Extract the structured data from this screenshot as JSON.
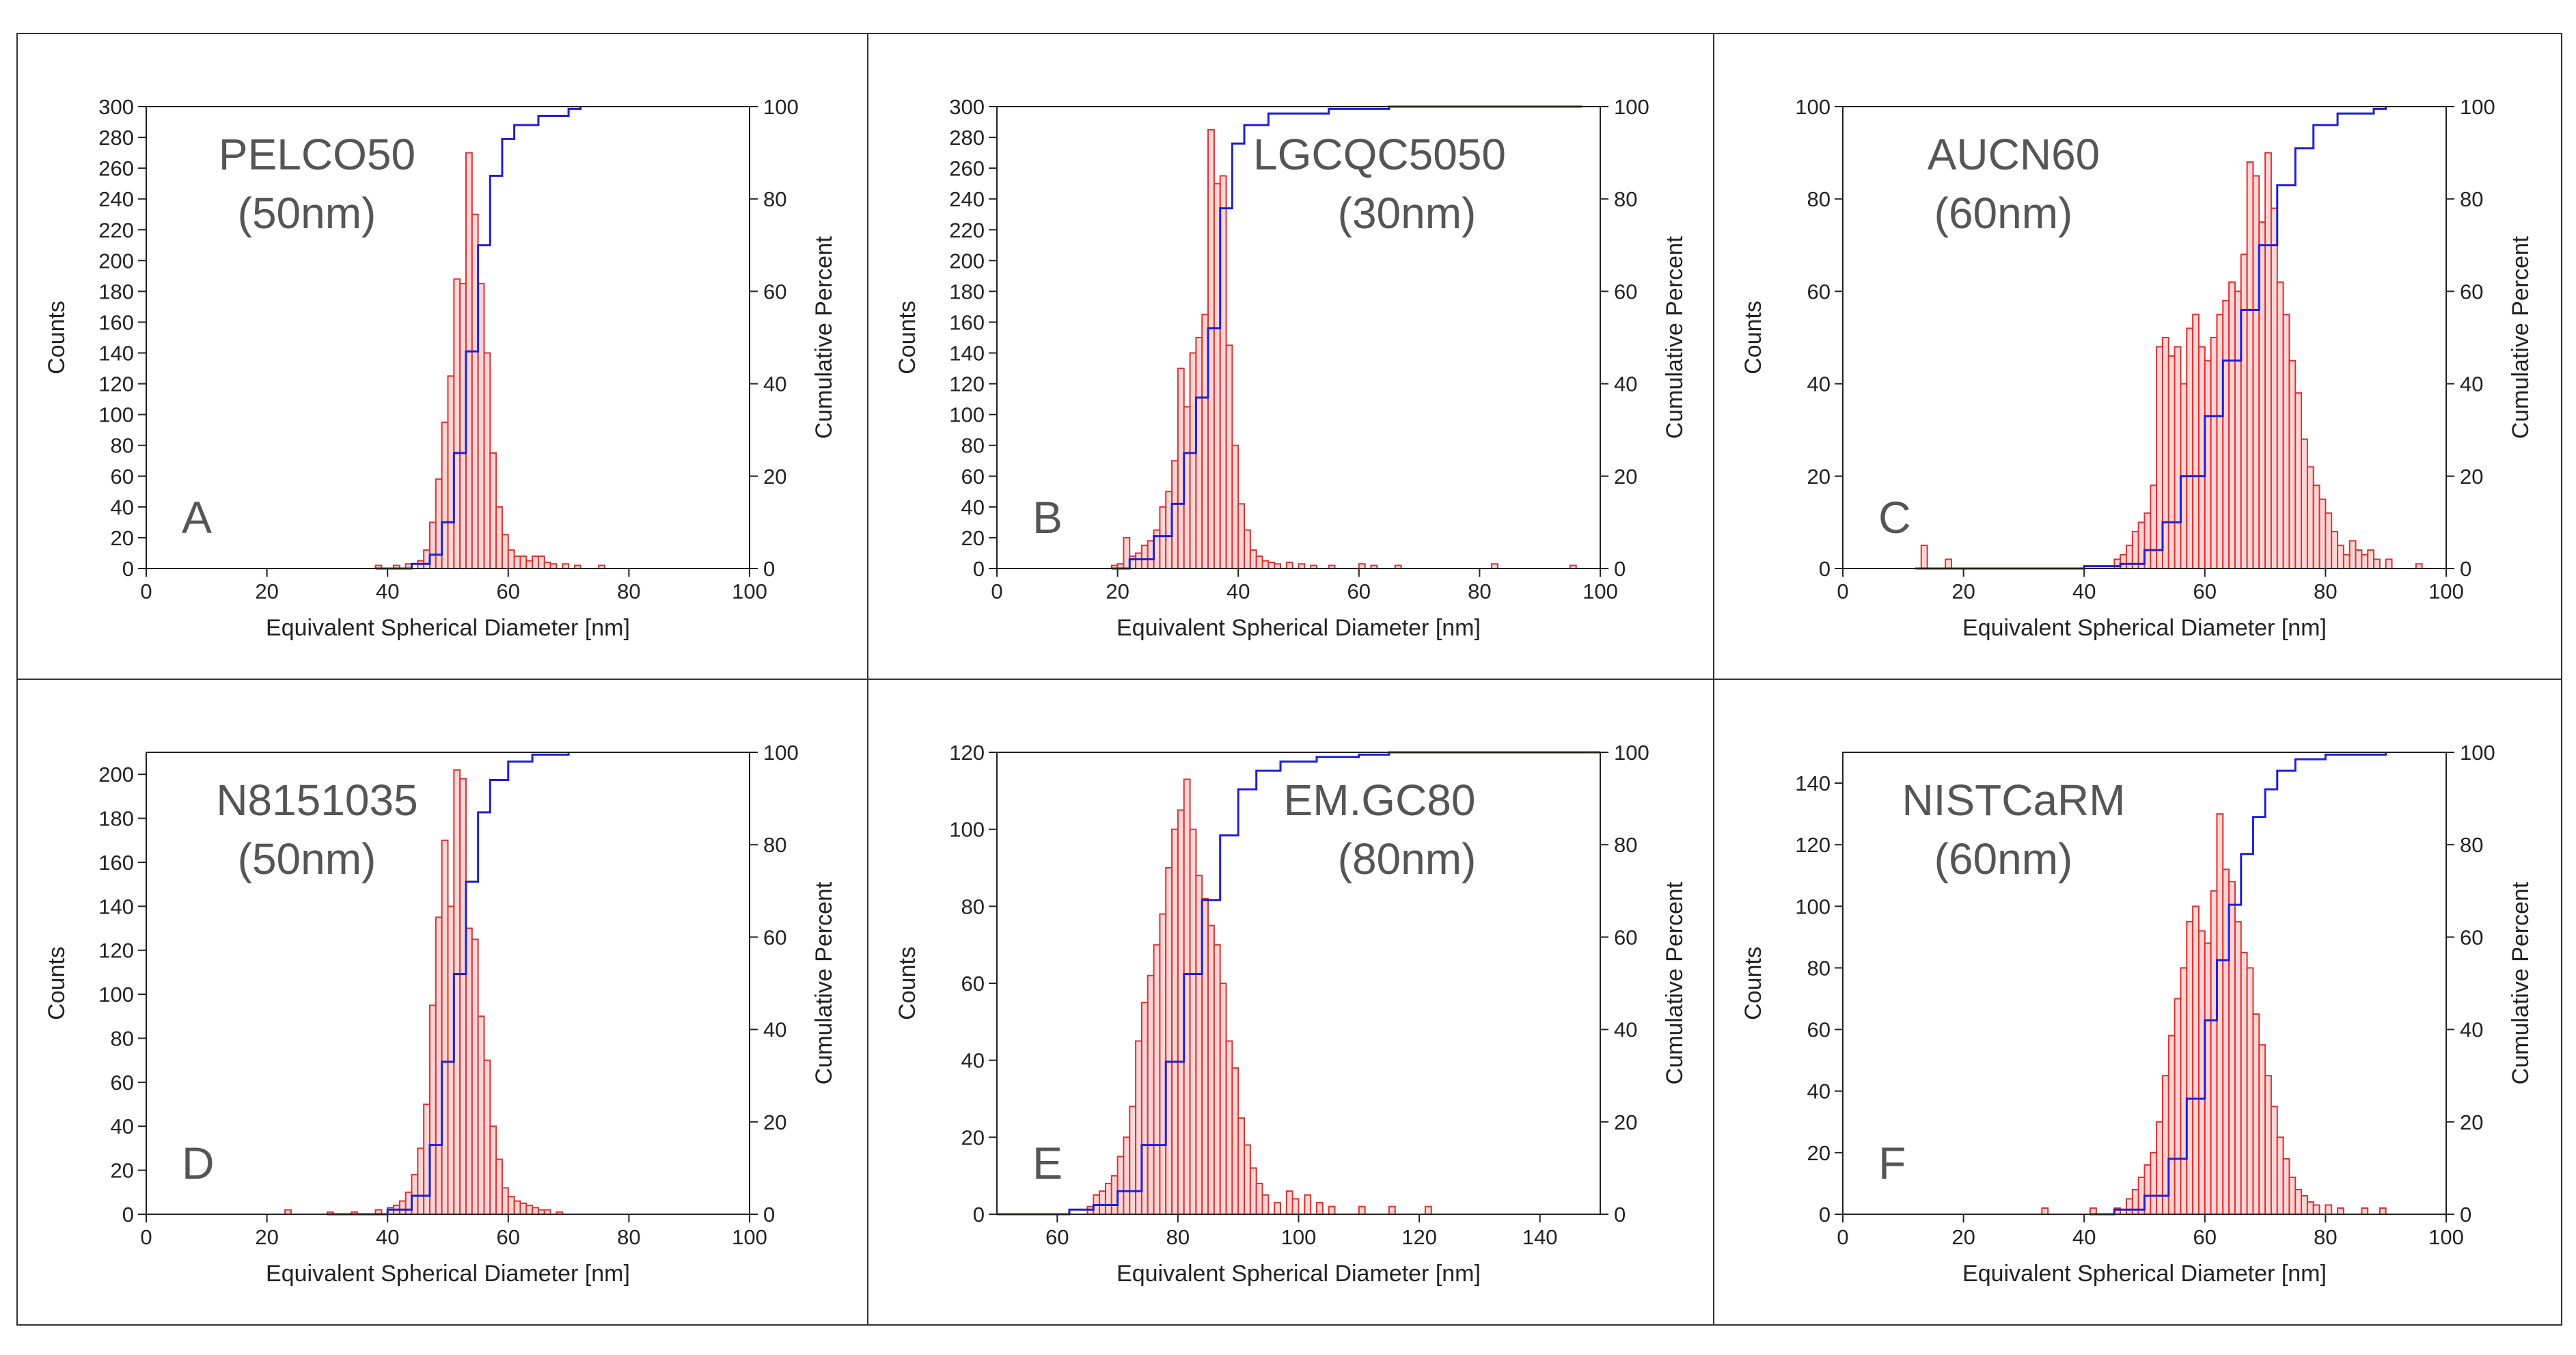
{
  "colors": {
    "bar_edge": "#e03030",
    "bar_fill": "#fbd6d6",
    "cumulative_line": "#1f1fd6",
    "axis": "#222222",
    "label_text": "#555555"
  },
  "chart_data": [
    {
      "type": "bar",
      "panel_letter": "A",
      "sample_name": "PELCO50",
      "sample_size": "(50nm)",
      "xlabel": "Equivalent Spherical Diameter [nm]",
      "ylabel": "Counts",
      "y2label": "Cumulative Percent",
      "xlim": [
        0,
        100
      ],
      "ylim": [
        0,
        300
      ],
      "y2lim": [
        0,
        100
      ],
      "x_ticks": [
        0,
        20,
        40,
        60,
        80,
        100
      ],
      "y_ticks": [
        0,
        20,
        40,
        60,
        80,
        100,
        120,
        140,
        160,
        180,
        200,
        220,
        240,
        260,
        280,
        300
      ],
      "y2_ticks": [
        0,
        20,
        40,
        60,
        80,
        100
      ],
      "bin_width": 1,
      "bins": [
        [
          38,
          2
        ],
        [
          41,
          2
        ],
        [
          43,
          3
        ],
        [
          45,
          5
        ],
        [
          46,
          12
        ],
        [
          47,
          30
        ],
        [
          48,
          58
        ],
        [
          49,
          95
        ],
        [
          50,
          125
        ],
        [
          51,
          188
        ],
        [
          52,
          185
        ],
        [
          53,
          270
        ],
        [
          54,
          230
        ],
        [
          55,
          185
        ],
        [
          56,
          140
        ],
        [
          57,
          75
        ],
        [
          58,
          40
        ],
        [
          59,
          22
        ],
        [
          60,
          12
        ],
        [
          61,
          8
        ],
        [
          62,
          8
        ],
        [
          63,
          5
        ],
        [
          64,
          8
        ],
        [
          65,
          8
        ],
        [
          66,
          4
        ],
        [
          67,
          3
        ],
        [
          69,
          3
        ],
        [
          71,
          2
        ],
        [
          75,
          2
        ]
      ],
      "cumulative": [
        [
          38,
          0
        ],
        [
          44,
          1
        ],
        [
          47,
          3
        ],
        [
          49,
          10
        ],
        [
          51,
          25
        ],
        [
          53,
          47
        ],
        [
          55,
          70
        ],
        [
          57,
          85
        ],
        [
          59,
          93
        ],
        [
          61,
          96
        ],
        [
          65,
          98
        ],
        [
          70,
          99.5
        ],
        [
          72,
          100
        ]
      ]
    },
    {
      "type": "bar",
      "panel_letter": "B",
      "sample_name": "LGCQC5050",
      "sample_size": "(30nm)",
      "xlabel": "Equivalent Spherical Diameter [nm]",
      "ylabel": "Counts",
      "y2label": "Cumulative Percent",
      "xlim": [
        0,
        100
      ],
      "ylim": [
        0,
        300
      ],
      "y2lim": [
        0,
        100
      ],
      "x_ticks": [
        0,
        20,
        40,
        60,
        80,
        100
      ],
      "y_ticks": [
        0,
        20,
        40,
        60,
        80,
        100,
        120,
        140,
        160,
        180,
        200,
        220,
        240,
        260,
        280,
        300
      ],
      "y2_ticks": [
        0,
        20,
        40,
        60,
        80,
        100
      ],
      "bin_width": 1,
      "bins": [
        [
          19,
          2
        ],
        [
          20,
          3
        ],
        [
          21,
          20
        ],
        [
          22,
          8
        ],
        [
          23,
          10
        ],
        [
          24,
          15
        ],
        [
          25,
          18
        ],
        [
          26,
          25
        ],
        [
          27,
          40
        ],
        [
          28,
          50
        ],
        [
          29,
          70
        ],
        [
          30,
          130
        ],
        [
          31,
          105
        ],
        [
          32,
          140
        ],
        [
          33,
          150
        ],
        [
          34,
          165
        ],
        [
          35,
          285
        ],
        [
          36,
          250
        ],
        [
          37,
          255
        ],
        [
          38,
          145
        ],
        [
          39,
          80
        ],
        [
          40,
          42
        ],
        [
          41,
          25
        ],
        [
          42,
          12
        ],
        [
          43,
          8
        ],
        [
          44,
          5
        ],
        [
          45,
          4
        ],
        [
          46,
          3
        ],
        [
          48,
          4
        ],
        [
          50,
          3
        ],
        [
          52,
          2
        ],
        [
          55,
          2
        ],
        [
          60,
          3
        ],
        [
          62,
          2
        ],
        [
          66,
          2
        ],
        [
          82,
          3
        ],
        [
          95,
          2
        ]
      ],
      "cumulative": [
        [
          19,
          0
        ],
        [
          22,
          2
        ],
        [
          26,
          7
        ],
        [
          29,
          14
        ],
        [
          31,
          25
        ],
        [
          33,
          37
        ],
        [
          35,
          52
        ],
        [
          37,
          78
        ],
        [
          39,
          92
        ],
        [
          41,
          96
        ],
        [
          45,
          98.5
        ],
        [
          55,
          99.5
        ],
        [
          65,
          100
        ],
        [
          80,
          100
        ],
        [
          97,
          100
        ]
      ]
    },
    {
      "type": "bar",
      "panel_letter": "C",
      "sample_name": "AUCN60",
      "sample_size": "(60nm)",
      "xlabel": "Equivalent Spherical Diameter [nm]",
      "ylabel": "Counts",
      "y2label": "Cumulative Percent",
      "xlim": [
        0,
        100
      ],
      "ylim": [
        0,
        100
      ],
      "y2lim": [
        0,
        100
      ],
      "x_ticks": [
        0,
        20,
        40,
        60,
        80,
        100
      ],
      "y_ticks": [
        0,
        20,
        40,
        60,
        80,
        100
      ],
      "y2_ticks": [
        0,
        20,
        40,
        60,
        80,
        100
      ],
      "bin_width": 1,
      "bins": [
        [
          13,
          5
        ],
        [
          17,
          2
        ],
        [
          45,
          2
        ],
        [
          46,
          3
        ],
        [
          47,
          5
        ],
        [
          48,
          8
        ],
        [
          49,
          10
        ],
        [
          50,
          12
        ],
        [
          51,
          18
        ],
        [
          52,
          48
        ],
        [
          53,
          50
        ],
        [
          54,
          46
        ],
        [
          55,
          48
        ],
        [
          56,
          40
        ],
        [
          57,
          52
        ],
        [
          58,
          55
        ],
        [
          59,
          48
        ],
        [
          60,
          45
        ],
        [
          61,
          50
        ],
        [
          62,
          55
        ],
        [
          63,
          58
        ],
        [
          64,
          62
        ],
        [
          65,
          60
        ],
        [
          66,
          68
        ],
        [
          67,
          88
        ],
        [
          68,
          85
        ],
        [
          69,
          75
        ],
        [
          70,
          90
        ],
        [
          71,
          78
        ],
        [
          72,
          62
        ],
        [
          73,
          55
        ],
        [
          74,
          45
        ],
        [
          75,
          38
        ],
        [
          76,
          28
        ],
        [
          77,
          22
        ],
        [
          78,
          18
        ],
        [
          79,
          15
        ],
        [
          80,
          12
        ],
        [
          81,
          8
        ],
        [
          82,
          5
        ],
        [
          83,
          3
        ],
        [
          84,
          6
        ],
        [
          85,
          4
        ],
        [
          86,
          3
        ],
        [
          87,
          4
        ],
        [
          88,
          2
        ],
        [
          90,
          2
        ],
        [
          95,
          1
        ]
      ],
      "cumulative": [
        [
          12,
          0
        ],
        [
          40,
          0.5
        ],
        [
          46,
          1
        ],
        [
          50,
          4
        ],
        [
          53,
          10
        ],
        [
          56,
          20
        ],
        [
          60,
          33
        ],
        [
          63,
          45
        ],
        [
          66,
          56
        ],
        [
          69,
          70
        ],
        [
          72,
          83
        ],
        [
          75,
          91
        ],
        [
          78,
          96
        ],
        [
          82,
          98.5
        ],
        [
          88,
          99.5
        ],
        [
          90,
          100
        ]
      ]
    },
    {
      "type": "bar",
      "panel_letter": "D",
      "sample_name": "N8151035",
      "sample_size": "(50nm)",
      "xlabel": "Equivalent Spherical Diameter [nm]",
      "ylabel": "Counts",
      "y2label": "Cumulative Percent",
      "xlim": [
        0,
        100
      ],
      "ylim": [
        0,
        210
      ],
      "y2lim": [
        0,
        100
      ],
      "x_ticks": [
        0,
        20,
        40,
        60,
        80,
        100
      ],
      "y_ticks": [
        0,
        20,
        40,
        60,
        80,
        100,
        120,
        140,
        160,
        180,
        200
      ],
      "y2_ticks": [
        0,
        20,
        40,
        60,
        80,
        100
      ],
      "bin_width": 1,
      "bins": [
        [
          23,
          2
        ],
        [
          30,
          1
        ],
        [
          34,
          1
        ],
        [
          38,
          2
        ],
        [
          40,
          3
        ],
        [
          41,
          4
        ],
        [
          42,
          6
        ],
        [
          43,
          10
        ],
        [
          44,
          18
        ],
        [
          45,
          30
        ],
        [
          46,
          50
        ],
        [
          47,
          95
        ],
        [
          48,
          135
        ],
        [
          49,
          170
        ],
        [
          50,
          140
        ],
        [
          51,
          202
        ],
        [
          52,
          198
        ],
        [
          53,
          130
        ],
        [
          54,
          125
        ],
        [
          55,
          90
        ],
        [
          56,
          70
        ],
        [
          57,
          40
        ],
        [
          58,
          25
        ],
        [
          59,
          12
        ],
        [
          60,
          8
        ],
        [
          61,
          6
        ],
        [
          62,
          5
        ],
        [
          63,
          4
        ],
        [
          64,
          3
        ],
        [
          65,
          2
        ],
        [
          66,
          2
        ],
        [
          68,
          1
        ]
      ],
      "cumulative": [
        [
          30,
          0
        ],
        [
          40,
          1
        ],
        [
          44,
          4
        ],
        [
          47,
          15
        ],
        [
          49,
          33
        ],
        [
          51,
          52
        ],
        [
          53,
          72
        ],
        [
          55,
          87
        ],
        [
          57,
          94
        ],
        [
          60,
          98
        ],
        [
          64,
          99.5
        ],
        [
          70,
          100
        ]
      ]
    },
    {
      "type": "bar",
      "panel_letter": "E",
      "sample_name": "EM.GC80",
      "sample_size": "(80nm)",
      "xlabel": "Equivalent Spherical Diameter [nm]",
      "ylabel": "Counts",
      "y2label": "Cumulative Percent",
      "xlim": [
        50,
        150
      ],
      "ylim": [
        0,
        120
      ],
      "y2lim": [
        0,
        100
      ],
      "x_ticks": [
        60,
        80,
        100,
        120,
        140
      ],
      "y_ticks": [
        0,
        20,
        40,
        60,
        80,
        100,
        120
      ],
      "y2_ticks": [
        0,
        20,
        40,
        60,
        80,
        100
      ],
      "bin_width": 1,
      "bins": [
        [
          65,
          2
        ],
        [
          66,
          5
        ],
        [
          67,
          6
        ],
        [
          68,
          8
        ],
        [
          69,
          10
        ],
        [
          70,
          15
        ],
        [
          71,
          20
        ],
        [
          72,
          28
        ],
        [
          73,
          45
        ],
        [
          74,
          55
        ],
        [
          75,
          62
        ],
        [
          76,
          70
        ],
        [
          77,
          78
        ],
        [
          78,
          90
        ],
        [
          79,
          100
        ],
        [
          80,
          105
        ],
        [
          81,
          113
        ],
        [
          82,
          100
        ],
        [
          83,
          88
        ],
        [
          84,
          82
        ],
        [
          85,
          75
        ],
        [
          86,
          70
        ],
        [
          87,
          60
        ],
        [
          88,
          45
        ],
        [
          89,
          38
        ],
        [
          90,
          25
        ],
        [
          91,
          18
        ],
        [
          92,
          12
        ],
        [
          93,
          8
        ],
        [
          94,
          5
        ],
        [
          96,
          3
        ],
        [
          98,
          6
        ],
        [
          99,
          4
        ],
        [
          101,
          5
        ],
        [
          103,
          3
        ],
        [
          105,
          2
        ],
        [
          110,
          2
        ],
        [
          115,
          2
        ],
        [
          121,
          2
        ]
      ],
      "cumulative": [
        [
          50,
          0
        ],
        [
          62,
          1
        ],
        [
          66,
          2
        ],
        [
          70,
          5
        ],
        [
          74,
          15
        ],
        [
          78,
          33
        ],
        [
          81,
          52
        ],
        [
          84,
          68
        ],
        [
          87,
          82
        ],
        [
          90,
          92
        ],
        [
          93,
          96
        ],
        [
          97,
          98
        ],
        [
          103,
          99
        ],
        [
          110,
          99.5
        ],
        [
          115,
          100
        ],
        [
          150,
          100
        ]
      ]
    },
    {
      "type": "bar",
      "panel_letter": "F",
      "sample_name": "NISTCaRM",
      "sample_size": "(60nm)",
      "xlabel": "Equivalent Spherical Diameter [nm]",
      "ylabel": "Counts",
      "y2label": "Cumulative Percent",
      "xlim": [
        0,
        100
      ],
      "ylim": [
        0,
        150
      ],
      "y2lim": [
        0,
        100
      ],
      "x_ticks": [
        0,
        20,
        40,
        60,
        80,
        100
      ],
      "y_ticks": [
        0,
        20,
        40,
        60,
        80,
        100,
        120,
        140
      ],
      "y2_ticks": [
        0,
        20,
        40,
        60,
        80,
        100
      ],
      "bin_width": 1,
      "bins": [
        [
          33,
          2
        ],
        [
          41,
          2
        ],
        [
          45,
          2
        ],
        [
          47,
          5
        ],
        [
          48,
          8
        ],
        [
          49,
          12
        ],
        [
          50,
          16
        ],
        [
          51,
          20
        ],
        [
          52,
          30
        ],
        [
          53,
          45
        ],
        [
          54,
          58
        ],
        [
          55,
          70
        ],
        [
          56,
          80
        ],
        [
          57,
          95
        ],
        [
          58,
          100
        ],
        [
          59,
          92
        ],
        [
          60,
          88
        ],
        [
          61,
          105
        ],
        [
          62,
          130
        ],
        [
          63,
          112
        ],
        [
          64,
          108
        ],
        [
          65,
          95
        ],
        [
          66,
          85
        ],
        [
          67,
          80
        ],
        [
          68,
          65
        ],
        [
          69,
          55
        ],
        [
          70,
          45
        ],
        [
          71,
          35
        ],
        [
          72,
          25
        ],
        [
          73,
          18
        ],
        [
          74,
          12
        ],
        [
          75,
          8
        ],
        [
          76,
          6
        ],
        [
          77,
          4
        ],
        [
          78,
          3
        ],
        [
          80,
          3
        ],
        [
          82,
          2
        ],
        [
          86,
          2
        ],
        [
          89,
          2
        ]
      ],
      "cumulative": [
        [
          41,
          0
        ],
        [
          45,
          1
        ],
        [
          50,
          4
        ],
        [
          54,
          12
        ],
        [
          57,
          25
        ],
        [
          60,
          42
        ],
        [
          62,
          55
        ],
        [
          64,
          67
        ],
        [
          66,
          78
        ],
        [
          68,
          86
        ],
        [
          70,
          92
        ],
        [
          72,
          96
        ],
        [
          75,
          98.5
        ],
        [
          80,
          99.5
        ],
        [
          90,
          100
        ]
      ]
    }
  ]
}
